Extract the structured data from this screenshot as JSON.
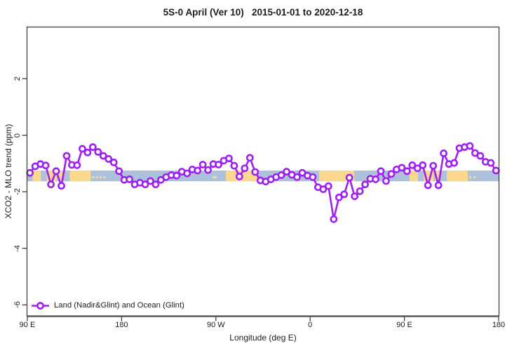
{
  "chart_data": {
    "type": "line",
    "title": "5S-0 April (Ver 10)   2015-01-01 to 2020-12-18",
    "xlabel": "Longitude (deg E)",
    "ylabel": "XCO2 - MLO trend (ppm)",
    "x_axis": {
      "note": "longitude shown eastward from 90E wrapping 450 degrees to 180",
      "range_deg": [
        90,
        540
      ],
      "ticks": [
        {
          "deg": 90,
          "label": "90 E"
        },
        {
          "deg": 180,
          "label": "180"
        },
        {
          "deg": 270,
          "label": "90 W"
        },
        {
          "deg": 360,
          "label": "0"
        },
        {
          "deg": 450,
          "label": "90 E"
        },
        {
          "deg": 540,
          "label": "180"
        }
      ]
    },
    "y_axis": {
      "range": [
        -6.4,
        3.85
      ],
      "ticks": [
        {
          "v": 2,
          "label": "2"
        },
        {
          "v": 0,
          "label": "0"
        },
        {
          "v": -2,
          "label": "-2"
        },
        {
          "v": -4,
          "label": "-4"
        },
        {
          "v": -6,
          "label": "-6"
        }
      ]
    },
    "legend": {
      "label": "Land (Nadir&Glint) and Ocean (Glint)"
    },
    "colors": {
      "series": "#A020F0",
      "marker_fill": "#ffffff",
      "ocean": "#AEC1DC",
      "land": "#FAD98F",
      "axis": "#3F3F3F",
      "axis_heavy": "#575757"
    },
    "map_band": {
      "value_top": -1.25,
      "value_bottom": -1.63,
      "land_patches_deg": [
        [
          95,
          103
        ],
        [
          108.5,
          118
        ],
        [
          119.5,
          123.5
        ],
        [
          130.5,
          150.5
        ],
        [
          279.5,
          310.5
        ],
        [
          368.5,
          402
        ],
        [
          455,
          463
        ],
        [
          468.5,
          478
        ],
        [
          479.5,
          483.5
        ],
        [
          490.5,
          510.5
        ]
      ],
      "speckles_deg": [
        153,
        156.5,
        160,
        163.5,
        268,
        269.5,
        513,
        517
      ]
    },
    "series": [
      {
        "name": "Land (Nadir&Glint) and Ocean (Glint)",
        "x_deg": [
          92.5,
          97.5,
          102.5,
          107.5,
          112.5,
          117.5,
          122.5,
          127.5,
          132.5,
          137.5,
          142.5,
          147.5,
          152.5,
          157.5,
          162.5,
          167.5,
          172.5,
          177.5,
          182.5,
          187.5,
          192.5,
          197.5,
          202.5,
          207.5,
          212.5,
          217.5,
          222.5,
          227.5,
          232.5,
          237.5,
          242.5,
          247.5,
          252.5,
          257.5,
          262.5,
          267.5,
          272.5,
          277.5,
          282.5,
          287.5,
          292.5,
          297.5,
          302.5,
          307.5,
          312.5,
          317.5,
          322.5,
          327.5,
          332.5,
          337.5,
          342.5,
          347.5,
          352.5,
          357.5,
          362.5,
          367.5,
          372.5,
          377.5,
          382.5,
          387.5,
          392.5,
          397.5,
          402.5,
          407.5,
          412.5,
          417.5,
          422.5,
          427.5,
          432.5,
          437.5,
          442.5,
          447.5,
          452.5,
          457.5,
          462.5,
          467.5,
          472.5,
          477.5,
          482.5,
          487.5,
          492.5,
          497.5,
          502.5,
          507.5,
          512.5,
          517.5,
          522.5,
          527.5,
          532.5,
          537.5
        ],
        "values": [
          -1.33,
          -1.1,
          -1.02,
          -1.07,
          -1.74,
          -1.27,
          -1.79,
          -0.73,
          -1.05,
          -1.06,
          -0.48,
          -0.61,
          -0.42,
          -0.59,
          -0.73,
          -0.84,
          -0.96,
          -1.27,
          -1.58,
          -1.56,
          -1.74,
          -1.68,
          -1.74,
          -1.62,
          -1.74,
          -1.58,
          -1.48,
          -1.41,
          -1.43,
          -1.29,
          -1.35,
          -1.21,
          -1.25,
          -1.04,
          -1.23,
          -1.02,
          -1.04,
          -0.9,
          -0.82,
          -1.08,
          -1.46,
          -1.17,
          -0.8,
          -1.3,
          -1.6,
          -1.64,
          -1.56,
          -1.48,
          -1.41,
          -1.29,
          -1.4,
          -1.48,
          -1.33,
          -1.43,
          -1.48,
          -1.84,
          -1.91,
          -1.8,
          -2.97,
          -2.2,
          -2.09,
          -1.5,
          -2.16,
          -1.98,
          -1.74,
          -1.54,
          -1.56,
          -1.27,
          -1.62,
          -1.37,
          -1.21,
          -1.15,
          -1.27,
          -1.06,
          -1.17,
          -1.06,
          -1.77,
          -1.08,
          -1.77,
          -0.64,
          -1.02,
          -0.98,
          -0.46,
          -0.42,
          -0.38,
          -0.63,
          -0.73,
          -0.94,
          -0.98,
          -1.25
        ]
      }
    ]
  }
}
